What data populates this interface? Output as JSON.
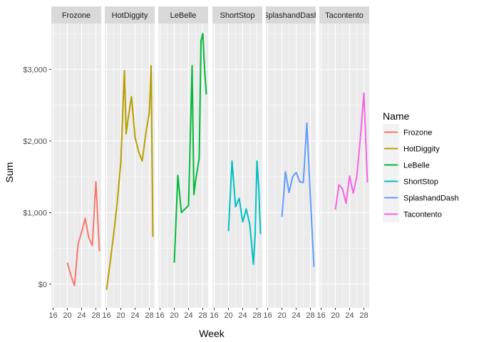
{
  "chart_data": {
    "type": "line",
    "xlabel": "Week",
    "ylabel": "Sum",
    "xlim": [
      15.5,
      29.5
    ],
    "ylim": [
      -330,
      3640
    ],
    "x_ticks": [
      16,
      20,
      24,
      28
    ],
    "y_ticks": [
      0,
      1000,
      2000,
      3000
    ],
    "y_tick_labels": [
      "$0",
      "$1,000",
      "$2,000",
      "$3,000"
    ],
    "grid": true,
    "legend": {
      "title": "Name",
      "position": "right"
    },
    "panel_background": "#ebebeb",
    "strip_background": "#d9d9d9",
    "grid_color": "#ffffff",
    "series": [
      {
        "name": "Frozone",
        "color": "#F8766D",
        "x": [
          20,
          21,
          22,
          23,
          24,
          25,
          26,
          27,
          28,
          29
        ],
        "y": [
          300,
          120,
          -20,
          560,
          730,
          920,
          650,
          540,
          1430,
          460
        ]
      },
      {
        "name": "HotDiggity",
        "color": "#B79F00",
        "x": [
          16,
          17,
          18,
          19,
          20,
          21,
          21.5,
          22,
          23,
          24,
          25,
          26,
          27,
          28,
          28.5,
          29
        ],
        "y": [
          -80,
          300,
          700,
          1150,
          1700,
          2980,
          2100,
          2300,
          2620,
          2050,
          1850,
          1720,
          2100,
          2400,
          3050,
          660
        ]
      },
      {
        "name": "LeBelle",
        "color": "#00BA38",
        "x": [
          20,
          21,
          22,
          23,
          24,
          25,
          25.5,
          26,
          27,
          27.5,
          28,
          28.5,
          29
        ],
        "y": [
          300,
          1520,
          1000,
          1050,
          1100,
          3050,
          1250,
          1450,
          1760,
          3400,
          3500,
          3000,
          2650
        ]
      },
      {
        "name": "ShortStop",
        "color": "#00BFC4",
        "x": [
          20,
          21,
          22,
          23,
          24,
          25,
          26,
          27,
          27.5,
          28,
          28.5,
          29
        ],
        "y": [
          740,
          1720,
          1080,
          1200,
          870,
          1050,
          830,
          280,
          700,
          1720,
          1350,
          700
        ]
      },
      {
        "name": "SplashandDash",
        "color": "#619CFF",
        "x": [
          20,
          21,
          22,
          23,
          24,
          25,
          26,
          27,
          28,
          29
        ],
        "y": [
          940,
          1570,
          1280,
          1500,
          1560,
          1430,
          1420,
          2250,
          1200,
          240
        ]
      },
      {
        "name": "Tacontento",
        "color": "#F564E3",
        "x": [
          20,
          21,
          22,
          23,
          24,
          25,
          26,
          27,
          28,
          29
        ],
        "y": [
          1040,
          1390,
          1330,
          1130,
          1510,
          1270,
          1500,
          2040,
          2670,
          1420
        ]
      }
    ],
    "facets": [
      {
        "label": "Frozone",
        "series": 0
      },
      {
        "label": "HotDiggity",
        "series": 1
      },
      {
        "label": "LeBelle",
        "series": 2
      },
      {
        "label": "ShortStop",
        "series": 3
      },
      {
        "label": "SplashandDash",
        "series": 4
      },
      {
        "label": "Tacontento",
        "series": 5
      }
    ]
  }
}
